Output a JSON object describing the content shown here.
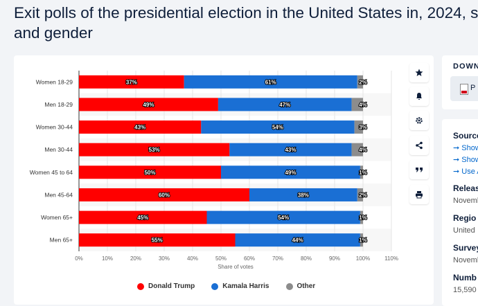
{
  "page": {
    "title_line1": "Exit polls of the presidential election in the United States in, 2024, s",
    "title_line2": "and gender"
  },
  "download": {
    "heading": "DOWN",
    "pdf_label": "P"
  },
  "info": {
    "source_heading": "Source",
    "links": [
      "Show",
      "Show",
      "Use A"
    ],
    "release_heading": "Releas",
    "release_value": "Novemb",
    "region_heading": "Regio",
    "region_value": "United",
    "survey_heading": "Survey",
    "survey_value": "Novemb",
    "number_heading": "Numb",
    "number_value": "15,590"
  },
  "toolbar_icons": [
    "star-icon",
    "bell-icon",
    "gear-icon",
    "share-icon",
    "quote-icon",
    "print-icon"
  ],
  "chart_data": {
    "type": "bar",
    "orientation": "horizontal",
    "stacked": true,
    "categories": [
      "Women 18-29",
      "Men 18-29",
      "Women 30-44",
      "Men 30-44",
      "Women 45 to 64",
      "Men 45-64",
      "Women 65+",
      "Men 65+"
    ],
    "series": [
      {
        "name": "Donald Trump",
        "color": "#ff0000",
        "values": [
          37,
          49,
          43,
          53,
          50,
          60,
          45,
          55
        ]
      },
      {
        "name": "Kamala Harris",
        "color": "#1a6fd4",
        "values": [
          61,
          47,
          54,
          43,
          49,
          38,
          54,
          44
        ]
      },
      {
        "name": "Other",
        "color": "#8c8c8c",
        "values": [
          2,
          4,
          3,
          4,
          1,
          2,
          1,
          1
        ]
      }
    ],
    "xlabel": "Share of votes",
    "xlim": [
      0,
      110
    ],
    "xticks": [
      "0%",
      "10%",
      "20%",
      "30%",
      "40%",
      "50%",
      "60%",
      "70%",
      "80%",
      "90%",
      "100%",
      "110%"
    ],
    "legend_position": "bottom"
  }
}
